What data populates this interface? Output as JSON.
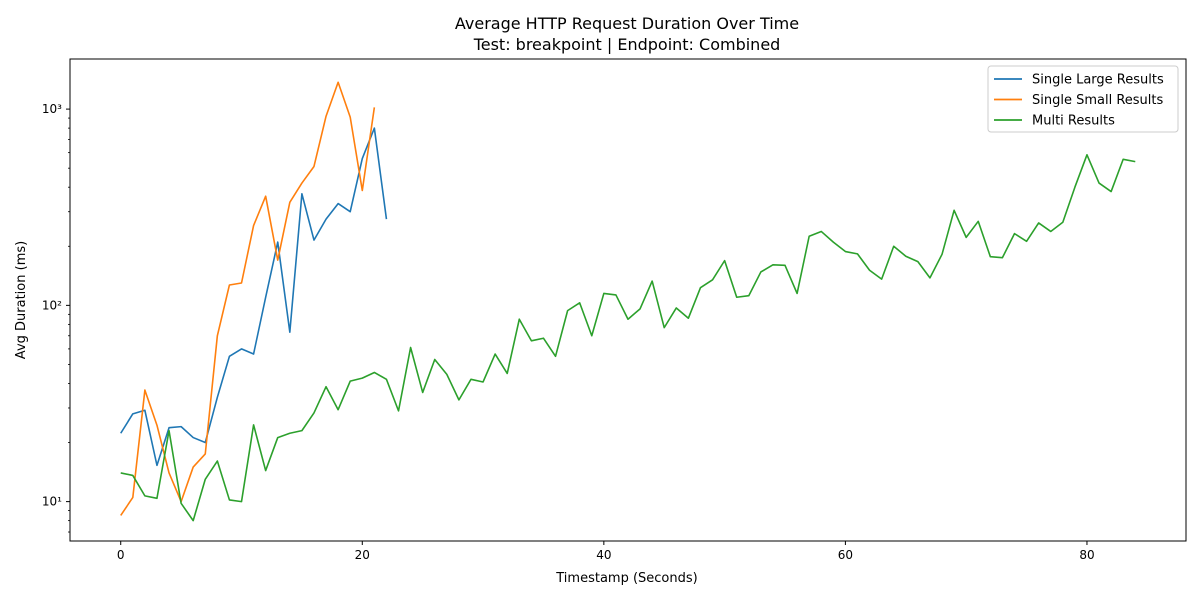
{
  "chart_data": {
    "type": "line",
    "title": "Average HTTP Request Duration Over Time",
    "subtitle": "Test: breakpoint | Endpoint: Combined",
    "xlabel": "Timestamp (Seconds)",
    "ylabel": "Avg Duration (ms)",
    "xlim": [
      -4.2,
      88.2
    ],
    "ylim": [
      6.3,
      1800
    ],
    "yscale": "log",
    "grid": false,
    "legend_position": "top-right",
    "x_ticks": [
      0,
      20,
      40,
      60,
      80
    ],
    "x_tick_labels": [
      "0",
      "20",
      "40",
      "60",
      "80"
    ],
    "y_ticks": [
      10,
      100,
      1000
    ],
    "y_tick_labels": [
      "10¹",
      "10²",
      "10³"
    ],
    "series": [
      {
        "name": "Single Large Results",
        "color": "#1f77b4",
        "x": [
          0,
          1,
          2,
          3,
          4,
          5,
          6,
          7,
          8,
          9,
          10,
          11,
          12,
          13,
          14,
          15,
          16,
          17,
          18,
          19,
          20,
          21,
          22
        ],
        "y": [
          22.3,
          28.0,
          29.2,
          15.3,
          23.8,
          24.1,
          21.2,
          20.0,
          34.0,
          55.0,
          60.0,
          56.5,
          110,
          210,
          73,
          370,
          215,
          275,
          330,
          300,
          560,
          800,
          275
        ]
      },
      {
        "name": "Single Small Results",
        "color": "#ff7f0e",
        "x": [
          0,
          1,
          2,
          3,
          4,
          5,
          6,
          7,
          8,
          9,
          10,
          11,
          12,
          13,
          14,
          15,
          16,
          17,
          18,
          19,
          20,
          21
        ],
        "y": [
          8.5,
          10.5,
          37.0,
          24.5,
          14.0,
          10.0,
          15.0,
          17.5,
          70.0,
          127,
          130,
          255,
          360,
          170,
          335,
          420,
          510,
          920,
          1370,
          910,
          385,
          1020
        ]
      },
      {
        "name": "Multi Results",
        "color": "#2ca02c",
        "x": [
          0,
          1,
          2,
          3,
          4,
          5,
          6,
          7,
          8,
          9,
          10,
          11,
          12,
          13,
          14,
          15,
          16,
          17,
          18,
          19,
          20,
          21,
          22,
          23,
          24,
          25,
          26,
          27,
          28,
          29,
          30,
          31,
          32,
          33,
          34,
          35,
          36,
          37,
          38,
          39,
          40,
          41,
          42,
          43,
          44,
          45,
          46,
          47,
          48,
          49,
          50,
          51,
          52,
          53,
          54,
          55,
          56,
          57,
          58,
          59,
          60,
          61,
          62,
          63,
          64,
          65,
          66,
          67,
          68,
          69,
          70,
          71,
          72,
          73,
          74,
          75,
          76,
          77,
          78,
          79,
          80,
          81,
          82,
          83,
          84
        ],
        "y": [
          14.0,
          13.6,
          10.7,
          10.4,
          23.0,
          9.8,
          8.0,
          13.0,
          16.1,
          10.2,
          10.0,
          24.6,
          14.4,
          21.2,
          22.3,
          23.0,
          28.3,
          38.5,
          29.4,
          41.1,
          42.6,
          45.5,
          42.0,
          29.0,
          61.0,
          36.0,
          53.0,
          44.5,
          33.0,
          42.0,
          40.7,
          56.5,
          45.0,
          85.0,
          66.0,
          68.0,
          55.0,
          94.0,
          103,
          70.0,
          115,
          113,
          85.0,
          96.0,
          133,
          77.0,
          97.0,
          86.0,
          123,
          135,
          169,
          110,
          112,
          148,
          161,
          160,
          115,
          225,
          238,
          210,
          188,
          183,
          151,
          136,
          200,
          178,
          167,
          138,
          182,
          305,
          222,
          268,
          177,
          175,
          232,
          212,
          263,
          238,
          265,
          400,
          585,
          420,
          380,
          555,
          540
        ]
      }
    ]
  }
}
